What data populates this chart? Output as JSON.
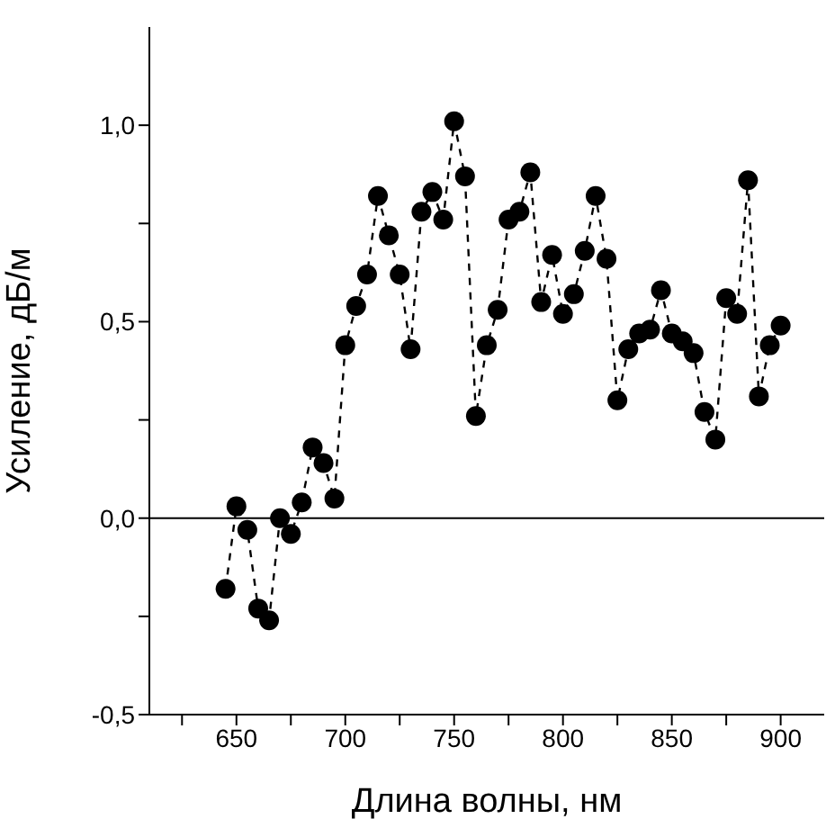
{
  "chart_data": {
    "type": "line",
    "xlabel": "Длина волны, нм",
    "ylabel": "Усиление, дБ/м",
    "x": [
      645,
      650,
      655,
      660,
      665,
      670,
      675,
      680,
      685,
      690,
      695,
      700,
      705,
      710,
      715,
      720,
      725,
      730,
      735,
      740,
      745,
      750,
      755,
      760,
      765,
      770,
      775,
      780,
      785,
      790,
      795,
      800,
      805,
      810,
      815,
      820,
      825,
      830,
      835,
      840,
      845,
      850,
      855,
      860,
      865,
      870,
      875,
      880,
      885,
      890,
      895,
      900
    ],
    "series": [
      {
        "color": "#000000",
        "values": [
          -0.18,
          0.03,
          -0.03,
          -0.23,
          -0.26,
          0.0,
          -0.04,
          0.04,
          0.18,
          0.14,
          0.05,
          0.44,
          0.54,
          0.62,
          0.82,
          0.72,
          0.62,
          0.43,
          0.78,
          0.83,
          0.76,
          1.01,
          0.87,
          0.26,
          0.44,
          0.53,
          0.76,
          0.78,
          0.88,
          0.55,
          0.67,
          0.52,
          0.57,
          0.68,
          0.82,
          0.66,
          0.3,
          0.43,
          0.47,
          0.48,
          0.58,
          0.47,
          0.45,
          0.42,
          0.27,
          0.2,
          0.56,
          0.52,
          0.86,
          0.31,
          0.44,
          0.49
        ]
      }
    ],
    "xlim": [
      610,
      920
    ],
    "xticks": [
      {
        "value": 625,
        "label": null
      },
      650,
      {
        "value": 675,
        "label": null
      },
      700,
      {
        "value": 725,
        "label": null
      },
      750,
      {
        "value": 775,
        "label": null
      },
      800,
      {
        "value": 825,
        "label": null
      },
      850,
      {
        "value": 875,
        "label": null
      },
      900
    ],
    "ylim": [
      -0.5,
      1.25
    ],
    "yticks": [
      {
        "value": -0.5,
        "label": "-0,5"
      },
      {
        "value": -0.25,
        "label": null
      },
      {
        "value": 0,
        "label": "0,0"
      },
      {
        "value": 0.25,
        "label": null
      },
      {
        "value": 0.5,
        "label": "0,5"
      },
      {
        "value": 0.75,
        "label": null
      },
      {
        "value": 1,
        "label": "1,0"
      }
    ],
    "ref_lines": [
      {
        "axis": "y",
        "value": 0,
        "color": "#000000",
        "line_style": "solid"
      }
    ],
    "marker": "circle",
    "line_style": "dashed",
    "grid": false,
    "legend": false
  }
}
